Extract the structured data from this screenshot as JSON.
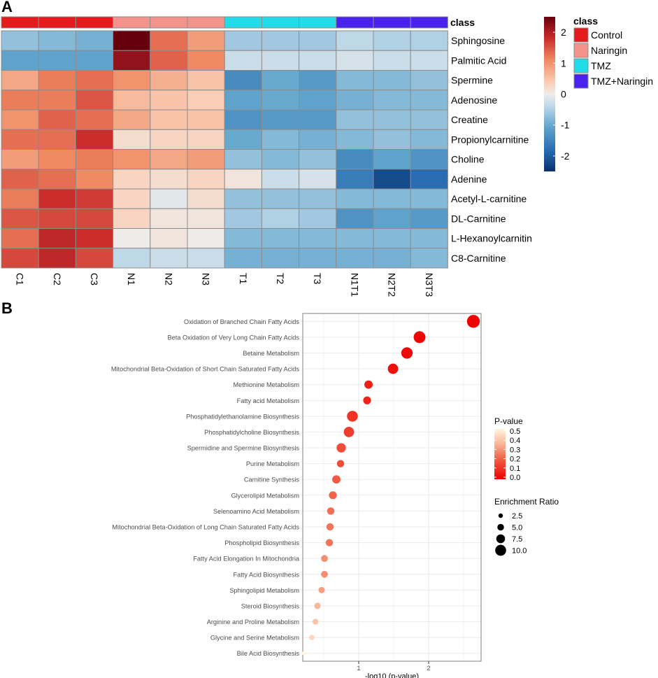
{
  "panel_labels": {
    "a": "A",
    "b": "B"
  },
  "chart_data": [
    {
      "type": "heatmap",
      "panel": "A",
      "class_label": "class",
      "columns": [
        "C1",
        "C2",
        "C3",
        "N1",
        "N2",
        "N3",
        "T1",
        "T2",
        "T3",
        "N1T1",
        "N2T2",
        "N3T3"
      ],
      "column_classes": [
        "Control",
        "Control",
        "Control",
        "Naringin",
        "Naringin",
        "Naringin",
        "TMZ",
        "TMZ",
        "TMZ",
        "TMZ+Naringin",
        "TMZ+Naringin",
        "TMZ+Naringin"
      ],
      "rows": [
        "Sphingosine",
        "Palmitic Acid",
        "Spermine",
        "Adenosine",
        "Creatine",
        "Propionylcarnitine",
        "Choline",
        "Adenine",
        "Acetyl-L-carnitine",
        "DL-Carnitine",
        "L-Hexanoylcarnitin",
        "C8-Carnitine"
      ],
      "values": [
        [
          -0.7,
          -0.8,
          -0.9,
          2.5,
          1.3,
          0.9,
          -0.6,
          -0.6,
          -0.6,
          -0.4,
          -0.5,
          -0.5
        ],
        [
          -1.1,
          -1.1,
          -1.1,
          2.2,
          1.4,
          1.1,
          -0.3,
          -0.3,
          -0.3,
          -0.2,
          -0.3,
          -0.3
        ],
        [
          0.8,
          1.2,
          1.3,
          1.0,
          0.7,
          0.5,
          -1.4,
          -1.0,
          -1.2,
          -0.8,
          -0.8,
          -0.7
        ],
        [
          1.2,
          1.2,
          1.5,
          0.6,
          0.5,
          0.4,
          -1.1,
          -1.0,
          -1.1,
          -0.9,
          -0.8,
          -0.8
        ],
        [
          1.0,
          1.4,
          1.3,
          0.8,
          0.5,
          0.5,
          -1.3,
          -1.2,
          -1.2,
          -0.7,
          -0.7,
          -0.7
        ],
        [
          1.3,
          1.3,
          1.8,
          0.2,
          0.3,
          0.3,
          -1.0,
          -0.8,
          -0.9,
          -0.8,
          -0.7,
          -0.8
        ],
        [
          0.9,
          1.1,
          1.2,
          1.0,
          0.8,
          0.9,
          -0.7,
          -0.8,
          -0.7,
          -1.4,
          -1.1,
          -1.3
        ],
        [
          1.4,
          1.3,
          1.1,
          0.3,
          0.2,
          0.3,
          0.1,
          -0.3,
          -0.2,
          -1.6,
          -2.2,
          -1.8
        ],
        [
          1.2,
          1.8,
          1.7,
          0.3,
          -0.1,
          0.2,
          -0.7,
          -0.7,
          -0.7,
          -0.8,
          -0.8,
          -0.8
        ],
        [
          1.5,
          1.6,
          1.6,
          0.3,
          0.1,
          0.1,
          -0.6,
          -0.5,
          -0.6,
          -1.3,
          -1.1,
          -1.2
        ],
        [
          1.3,
          1.9,
          1.8,
          0.0,
          0.1,
          0.0,
          -0.8,
          -0.8,
          -0.8,
          -0.8,
          -0.8,
          -0.8
        ],
        [
          1.6,
          1.9,
          1.6,
          -0.4,
          -0.3,
          -0.3,
          -0.9,
          -0.9,
          -0.9,
          -0.9,
          -0.9,
          -0.8
        ]
      ],
      "color_scale": {
        "range": [
          -2.5,
          2.5
        ],
        "ticks": [
          2,
          1,
          0,
          -1,
          -2
        ]
      },
      "legend": {
        "title": "class",
        "entries": [
          {
            "name": "Control",
            "color": "#e41a1c"
          },
          {
            "name": "Naringin",
            "color": "#f4938c"
          },
          {
            "name": "TMZ",
            "color": "#22dbe8"
          },
          {
            "name": "TMZ+Naringin",
            "color": "#4a22f0"
          }
        ]
      }
    },
    {
      "type": "scatter",
      "panel": "B",
      "xlabel": "-log10 (p-value)",
      "xticks": [
        1,
        2
      ],
      "xlim": [
        0.2,
        2.75
      ],
      "pathways": [
        "Oxidation of Branched Chain Fatty Acids",
        "Beta Oxidation of Very Long Chain Fatty Acids",
        "Betaine Metabolism",
        "Mitochondrial Beta-Oxidation of Short Chain Saturated Fatty Acids",
        "Methionine Metabolism",
        "Fatty acid Metabolism",
        "Phosphatidylethanolamine Biosynthesis",
        "Phosphatidylcholine Biosynthesis",
        "Spermidine and Spermine Biosynthesis",
        "Purine Metabolism",
        "Carnitine Synthesis",
        "Glycerolipid Metabolism",
        "Selenoamino Acid Metabolism",
        "Mitochondrial Beta-Oxidation of Long Chain Saturated Fatty Acids",
        "Phospholipid Biosynthesis",
        "Fatty Acid Elongation In Mitochondria",
        "Fatty Acid Biosynthesis",
        "Sphingolipid Metabolism",
        "Steroid Biosynthesis",
        "Arginine and Proline Metabolism",
        "Glycine and Serine Metabolism",
        "Bile Acid Biosynthesis"
      ],
      "neg_log10_p": [
        2.64,
        1.87,
        1.69,
        1.49,
        1.14,
        1.12,
        0.91,
        0.86,
        0.75,
        0.74,
        0.68,
        0.63,
        0.6,
        0.59,
        0.58,
        0.51,
        0.51,
        0.47,
        0.41,
        0.38,
        0.33,
        0.22
      ],
      "p_value": [
        0.002,
        0.013,
        0.02,
        0.032,
        0.072,
        0.076,
        0.12,
        0.14,
        0.18,
        0.18,
        0.21,
        0.23,
        0.25,
        0.26,
        0.26,
        0.31,
        0.31,
        0.34,
        0.39,
        0.42,
        0.47,
        0.6
      ],
      "enrichment_ratio": [
        10.0,
        9.0,
        8.5,
        7.5,
        5.5,
        5.0,
        8.0,
        7.5,
        6.5,
        4.5,
        5.5,
        5.0,
        4.5,
        4.5,
        4.5,
        4.0,
        4.0,
        3.5,
        3.5,
        3.0,
        2.5,
        1.5
      ],
      "legend": {
        "pvalue_title": "P-value",
        "pvalue_ticks": [
          "0.5",
          "0.4",
          "0.3",
          "0.2",
          "0.1",
          "0.0"
        ],
        "size_title": "Enrichment Ratio",
        "size_ticks": [
          "2.5",
          "5.0",
          "7.5",
          "10.0"
        ]
      }
    }
  ]
}
